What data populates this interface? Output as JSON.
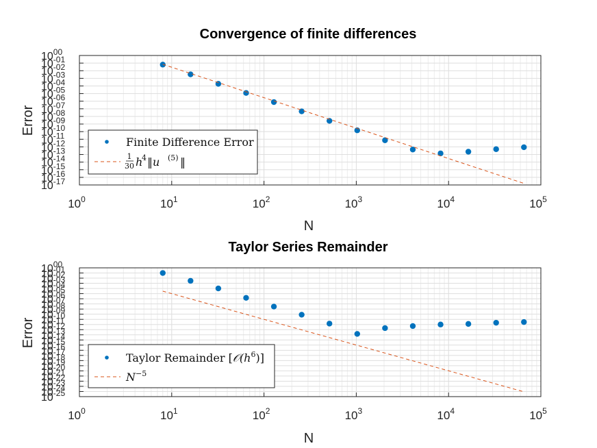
{
  "chart_data": [
    {
      "type": "scatter",
      "title": "Convergence of finite differences",
      "xlabel": "N",
      "ylabel": "Error",
      "xscale": "log",
      "yscale": "log",
      "xlim": [
        1,
        100000
      ],
      "ylim": [
        1e-17,
        1
      ],
      "x_ticks": [
        "10^0",
        "10^1",
        "10^2",
        "10^3",
        "10^4",
        "10^5"
      ],
      "y_ticks": [
        "10^00",
        "10^-01",
        "10^-02",
        "10^-03",
        "10^-04",
        "10^-05",
        "10^-06",
        "10^-07",
        "10^-08",
        "10^-09",
        "10^-10",
        "10^-11",
        "10^-12",
        "10^-13",
        "10^-14",
        "10^-15",
        "10^-16",
        "10^-17"
      ],
      "grid": true,
      "legend_position": "bottom-left",
      "series": [
        {
          "name": "Finite Difference Error",
          "style": "marker",
          "color": "#0072BD",
          "x": [
            8,
            16,
            32,
            64,
            128,
            256,
            512,
            1024,
            2048,
            4096,
            8192,
            16384,
            32768,
            65536
          ],
          "y": [
            0.063,
            0.0033,
            0.00019,
            1.2e-05,
            7.6e-07,
            4.6e-08,
            2.6e-09,
            1.5e-10,
            7.4e-12,
            4.5e-13,
            1.4e-13,
            2.3e-13,
            5e-13,
            9e-13
          ]
        },
        {
          "name": "\\frac{1}{30} h^4 ||u^{(5)}||",
          "style": "dashed",
          "color": "#D95319",
          "x": [
            8,
            65536
          ],
          "y": [
            0.07,
            1.6e-17
          ]
        }
      ]
    },
    {
      "type": "scatter",
      "title": "Taylor Series Remainder",
      "xlabel": "N",
      "ylabel": "Error",
      "xscale": "log",
      "yscale": "log",
      "xlim": [
        1,
        100000
      ],
      "ylim": [
        1e-25,
        1
      ],
      "x_ticks": [
        "10^0",
        "10^1",
        "10^2",
        "10^3",
        "10^4",
        "10^5"
      ],
      "y_ticks": [
        "10^00",
        "10^-01",
        "10^-02",
        "10^-03",
        "10^-04",
        "10^-05",
        "10^-06",
        "10^-07",
        "10^-08",
        "10^-09",
        "10^-10",
        "10^-11",
        "10^-12",
        "10^-13",
        "10^-14",
        "10^-15",
        "10^-16",
        "10^-17",
        "10^-18",
        "10^-19",
        "10^-20",
        "10^-21",
        "10^-22",
        "10^-23",
        "10^-24",
        "10^-25"
      ],
      "grid": true,
      "legend_position": "bottom-left",
      "series": [
        {
          "name": "Taylor Remainder [O(h^6)]",
          "style": "marker",
          "color": "#0072BD",
          "x": [
            8,
            16,
            32,
            64,
            128,
            256,
            512,
            1024,
            2048,
            4096,
            8192,
            16384,
            32768,
            65536
          ],
          "y": [
            0.1,
            0.003,
            0.0001,
            1.5e-06,
            3e-08,
            8e-10,
            1.5e-11,
            1.5e-13,
            2e-12,
            5e-12,
            1e-11,
            1.3e-11,
            2.2e-11,
            3e-11
          ]
        },
        {
          "name": "N^{-5}",
          "style": "dashed",
          "color": "#D95319",
          "x": [
            8,
            65536
          ],
          "y": [
            3e-05,
            8.7e-25
          ]
        }
      ]
    }
  ],
  "legends": [
    {
      "entry1": "Finite Difference Error",
      "entry2_frac_num": "1",
      "entry2_frac_den": "30",
      "entry2_rest": "h",
      "entry2_pow": "4",
      "entry2_norm": "‖u",
      "entry2_norm_pow": "(5)",
      "entry2_close": "‖"
    },
    {
      "entry1_a": "Taylor Remainder [",
      "entry1_O": "𝒪(h",
      "entry1_pow": "6",
      "entry1_b": ")]",
      "entry2": "N",
      "entry2_pow": "−5"
    }
  ]
}
